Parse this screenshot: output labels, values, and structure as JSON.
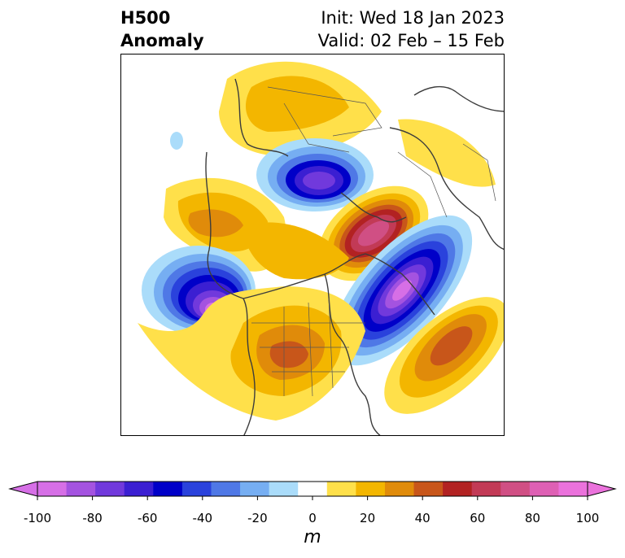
{
  "header": {
    "title_line1": "H500",
    "title_line2": "Anomaly",
    "init": "Init: Wed 18 Jan 2023",
    "valid": "Valid: 02 Feb – 15 Feb"
  },
  "colorbar": {
    "unit": "m",
    "tick_labels": [
      "-100",
      "-80",
      "-60",
      "-40",
      "-20",
      "0",
      "20",
      "40",
      "60",
      "80",
      "100"
    ],
    "colors": [
      "#d66fe6",
      "#a453e0",
      "#7139dc",
      "#3b1fd2",
      "#0000c8",
      "#2a42dc",
      "#4f78e6",
      "#76aef2",
      "#aadcfa",
      "#ffffff",
      "#ffe04a",
      "#f3b600",
      "#e08b0a",
      "#c8561a",
      "#b22222",
      "#c23a56",
      "#d04f84",
      "#de60b4",
      "#eb72dc"
    ],
    "min_color": "#d66fe6",
    "max_color": "#eb72dc"
  }
}
